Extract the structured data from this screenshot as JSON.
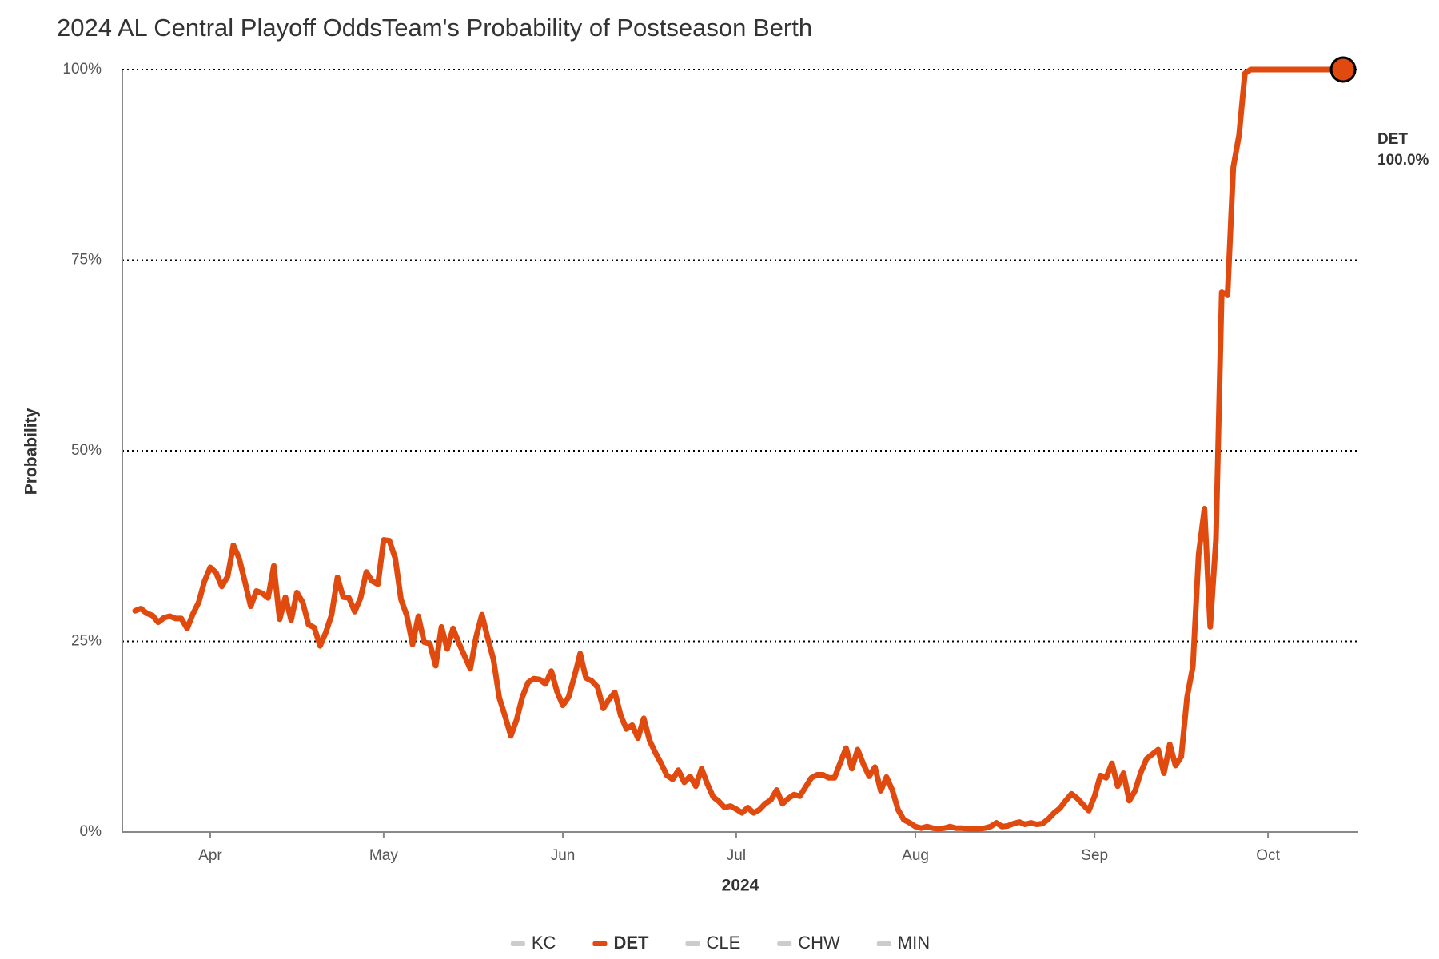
{
  "chart_data": {
    "type": "line",
    "title": "2024 AL Central Playoff OddsTeam's Probability of Postseason Berth",
    "x_label": "2024",
    "y_label": "Probability",
    "categories": [
      null,
      null,
      null,
      null,
      null,
      null,
      null,
      null,
      null,
      null,
      null,
      null,
      null,
      "Apr",
      null,
      null,
      null,
      null,
      null,
      null,
      null,
      null,
      null,
      null,
      null,
      null,
      null,
      null,
      null,
      null,
      null,
      null,
      null,
      null,
      null,
      null,
      null,
      null,
      null,
      null,
      null,
      null,
      null,
      "May",
      null,
      null,
      null,
      null,
      null,
      null,
      null,
      null,
      null,
      null,
      null,
      null,
      null,
      null,
      null,
      null,
      null,
      null,
      null,
      null,
      null,
      null,
      null,
      null,
      null,
      null,
      null,
      null,
      null,
      null,
      "Jun",
      null,
      null,
      null,
      null,
      null,
      null,
      null,
      null,
      null,
      null,
      null,
      null,
      null,
      null,
      null,
      null,
      null,
      null,
      null,
      null,
      null,
      null,
      null,
      null,
      null,
      null,
      null,
      null,
      null,
      "Jul",
      null,
      null,
      null,
      null,
      null,
      null,
      null,
      null,
      null,
      null,
      null,
      null,
      null,
      null,
      null,
      null,
      null,
      null,
      null,
      null,
      null,
      null,
      null,
      null,
      null,
      null,
      null,
      null,
      null,
      null,
      "Aug",
      null,
      null,
      null,
      null,
      null,
      null,
      null,
      null,
      null,
      null,
      null,
      null,
      null,
      null,
      null,
      null,
      null,
      null,
      null,
      null,
      null,
      null,
      null,
      null,
      null,
      null,
      null,
      null,
      null,
      null,
      "Sep",
      null,
      null,
      null,
      null,
      null,
      null,
      null,
      null,
      null,
      null,
      null,
      null,
      null,
      null,
      null,
      null,
      null,
      null,
      null,
      null,
      null,
      null,
      null,
      null,
      null,
      null,
      null,
      null,
      null,
      "Oct",
      null,
      null,
      null,
      null,
      null,
      null,
      null,
      null,
      null,
      null,
      null,
      null,
      null
    ],
    "series": [
      {
        "name": "KC",
        "color": "#cccccc",
        "visible": false
      },
      {
        "name": "DET",
        "color": "#e04a0f",
        "visible": true,
        "last_value_label": "100.0%",
        "values": [
          29.0,
          29.3,
          28.7,
          28.4,
          27.5,
          28.1,
          28.3,
          28.0,
          28.0,
          26.7,
          28.6,
          30.1,
          32.9,
          34.7,
          34.0,
          32.2,
          33.5,
          37.6,
          35.9,
          32.8,
          29.6,
          31.6,
          31.3,
          30.7,
          34.9,
          27.9,
          30.8,
          27.8,
          31.4,
          30.1,
          27.2,
          26.8,
          24.4,
          26.2,
          28.5,
          33.4,
          30.8,
          30.7,
          28.9,
          30.7,
          34.1,
          32.9,
          32.5,
          38.3,
          38.2,
          35.9,
          30.5,
          28.4,
          24.6,
          28.3,
          24.9,
          24.7,
          21.8,
          26.9,
          24.0,
          26.7,
          24.8,
          23.1,
          21.4,
          25.6,
          28.5,
          25.5,
          22.6,
          17.6,
          15.2,
          12.6,
          14.7,
          17.7,
          19.6,
          20.1,
          20.0,
          19.4,
          21.1,
          18.4,
          16.6,
          17.7,
          20.4,
          23.4,
          20.2,
          19.8,
          19.0,
          16.2,
          17.4,
          18.3,
          15.3,
          13.5,
          14.0,
          12.3,
          14.9,
          12.0,
          10.4,
          9.0,
          7.4,
          6.9,
          8.1,
          6.5,
          7.3,
          6.0,
          8.3,
          6.3,
          4.6,
          4.0,
          3.2,
          3.4,
          3.0,
          2.5,
          3.2,
          2.5,
          2.9,
          3.7,
          4.2,
          5.5,
          3.7,
          4.4,
          4.9,
          4.7,
          5.9,
          7.1,
          7.5,
          7.5,
          7.1,
          7.1,
          9.1,
          11.0,
          8.3,
          10.8,
          8.9,
          7.3,
          8.5,
          5.4,
          7.2,
          5.5,
          2.9,
          1.6,
          1.2,
          0.7,
          0.5,
          0.7,
          0.5,
          0.4,
          0.5,
          0.7,
          0.5,
          0.5,
          0.4,
          0.4,
          0.4,
          0.5,
          0.7,
          1.2,
          0.7,
          0.8,
          1.1,
          1.3,
          1.0,
          1.2,
          1.0,
          1.1,
          1.7,
          2.5,
          3.1,
          4.1,
          5.0,
          4.4,
          3.6,
          2.8,
          4.7,
          7.4,
          7.1,
          9.0,
          6.0,
          7.7,
          4.1,
          5.4,
          7.8,
          9.6,
          10.2,
          10.8,
          7.7,
          11.5,
          8.7,
          9.9,
          17.7,
          21.7,
          36.4,
          42.4,
          26.9,
          38.4,
          70.8,
          70.4,
          87.2,
          91.4,
          99.5,
          100,
          100,
          100,
          100,
          100,
          100,
          100,
          100,
          100,
          100,
          100,
          100,
          100,
          100,
          100,
          100,
          100
        ]
      },
      {
        "name": "CLE",
        "color": "#cccccc",
        "visible": false
      },
      {
        "name": "CHW",
        "color": "#cccccc",
        "visible": false
      },
      {
        "name": "MIN",
        "color": "#cccccc",
        "visible": false
      }
    ],
    "ylim": [
      0,
      100
    ],
    "yticks": [
      {
        "value": 0,
        "label": "0%"
      },
      {
        "value": 25,
        "label": "25%"
      },
      {
        "value": 50,
        "label": "50%"
      },
      {
        "value": 75,
        "label": "75%"
      },
      {
        "value": 100,
        "label": "100%"
      }
    ],
    "grid": true,
    "legend": "bottom"
  }
}
